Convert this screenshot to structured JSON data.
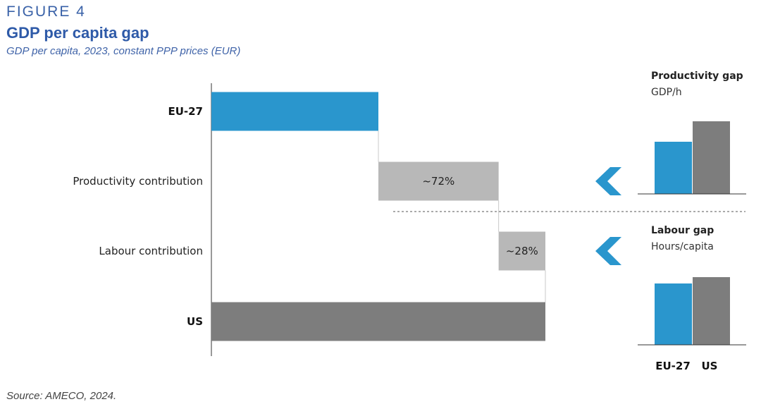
{
  "figure": {
    "label": "FIGURE 4",
    "title": "GDP per capita gap",
    "subtitle": "GDP per capita, 2023, constant PPP prices (EUR)",
    "source": "Source: AMECO, 2024."
  },
  "colors": {
    "eu": "#2a96cd",
    "us": "#7d7d7d",
    "contribution": "#b8b8b8",
    "chevron": "#2a96cd",
    "axis": "#333333",
    "connector": "#c8c8c8",
    "divider": "#555555"
  },
  "chart_data": [
    {
      "type": "bar",
      "subtype": "waterfall",
      "orientation": "horizontal",
      "categories": [
        "EU-27",
        "Productivity contribution",
        "Labour contribution",
        "US"
      ],
      "values": [
        100,
        72,
        28,
        200
      ],
      "steps": [
        {
          "category": "EU-27",
          "start": 0,
          "end": 100,
          "label": "",
          "kind": "total-eu"
        },
        {
          "category": "Productivity contribution",
          "start": 100,
          "end": 172,
          "label": "~72%",
          "kind": "contribution"
        },
        {
          "category": "Labour contribution",
          "start": 172,
          "end": 200,
          "label": "~28%",
          "kind": "contribution"
        },
        {
          "category": "US",
          "start": 0,
          "end": 200,
          "label": "",
          "kind": "total-us"
        }
      ],
      "bold_categories": [
        "EU-27",
        "US"
      ],
      "value_scale_note": "",
      "xlim": [
        0,
        200
      ],
      "grid": false,
      "legend": "none"
    },
    {
      "type": "bar",
      "title": "Productivity gap",
      "subtitle": "GDP/h",
      "categories": [
        "EU-27",
        "US"
      ],
      "values": [
        74,
        103
      ],
      "ylim": [
        0,
        110
      ],
      "show_category_labels": false
    },
    {
      "type": "bar",
      "title": "Labour gap",
      "subtitle": "Hours/capita",
      "categories": [
        "EU-27",
        "US"
      ],
      "values": [
        87,
        96
      ],
      "ylim": [
        0,
        110
      ],
      "show_category_labels": true
    }
  ]
}
